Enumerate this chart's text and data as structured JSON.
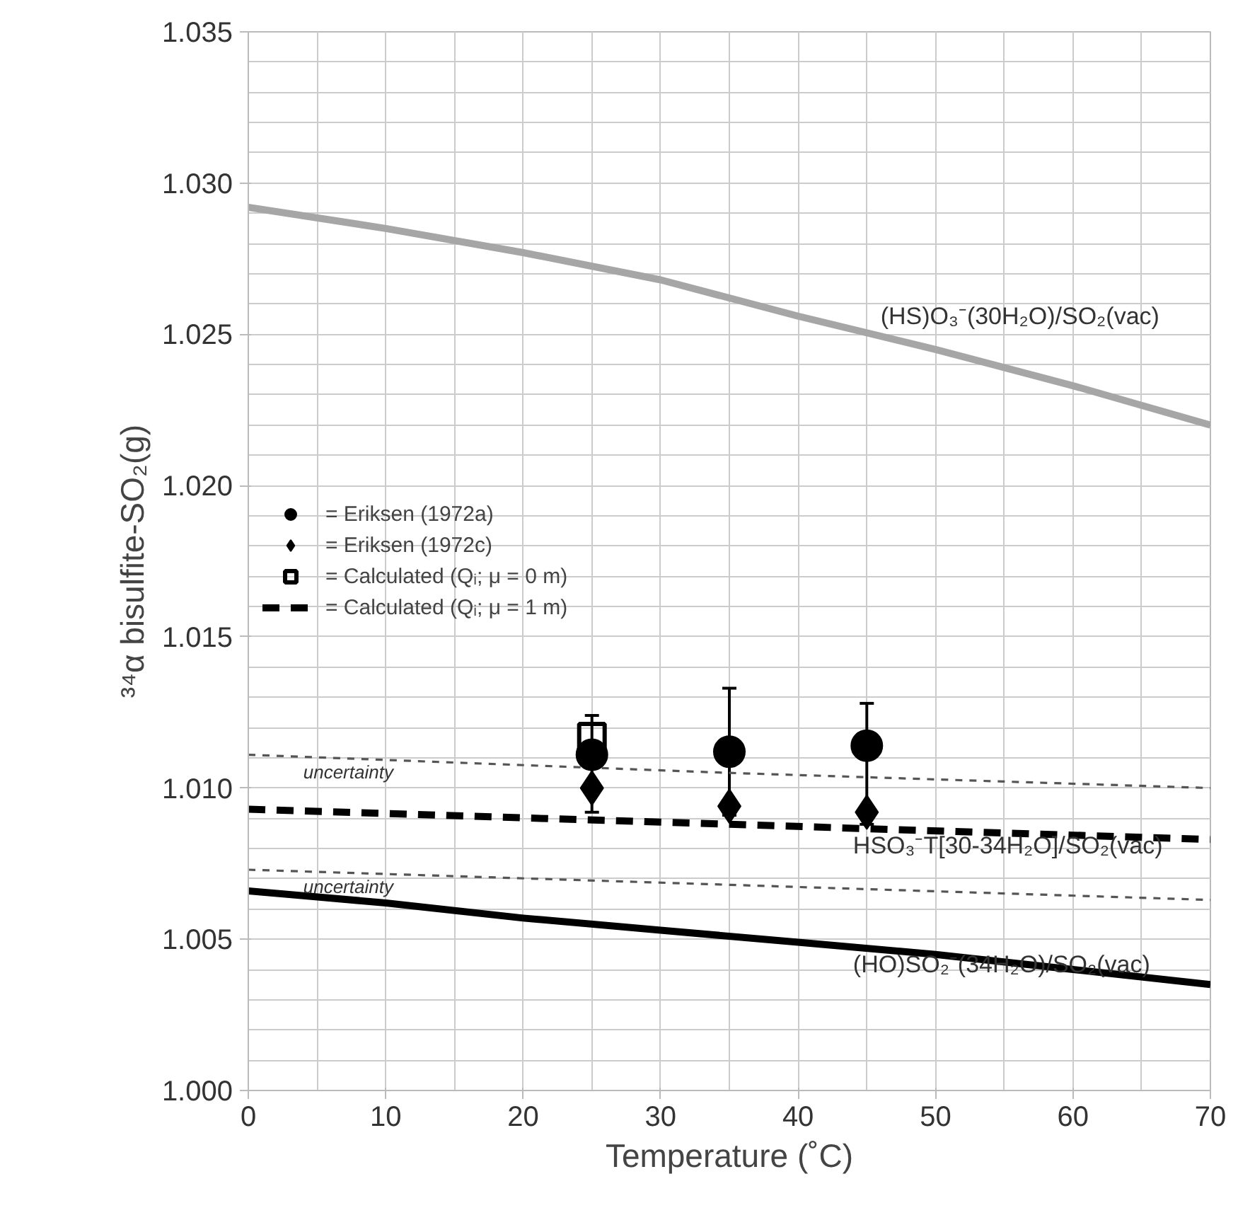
{
  "chart_data": {
    "type": "line",
    "xlabel": "Temperature (˚C)",
    "ylabel": "³⁴α bisulfite-SO₂(g)",
    "xlim": [
      0,
      70
    ],
    "xticks": [
      0,
      10,
      20,
      30,
      40,
      50,
      60,
      70
    ],
    "ylim": [
      1.0,
      1.035
    ],
    "yticks": [
      {
        "value": 1.0,
        "label": "1.000"
      },
      {
        "value": 1.005,
        "label": "1.005"
      },
      {
        "value": 1.01,
        "label": "1.010"
      },
      {
        "value": 1.015,
        "label": "1.015"
      },
      {
        "value": 1.02,
        "label": "1.020"
      },
      {
        "value": 1.025,
        "label": "1.025"
      },
      {
        "value": 1.03,
        "label": "1.030"
      },
      {
        "value": 1.035,
        "label": "1.035"
      }
    ],
    "grid": true,
    "legend": "left",
    "series": [
      {
        "color": "#a6a6a6",
        "line_style": "solid",
        "x": [
          0,
          10,
          20,
          30,
          40,
          50,
          60,
          70
        ],
        "values": [
          1.0292,
          1.0285,
          1.0277,
          1.0268,
          1.0256,
          1.0245,
          1.0233,
          1.022
        ]
      },
      {
        "color": "#000000",
        "line_style": "solid",
        "x": [
          0,
          10,
          20,
          30,
          40,
          50,
          60,
          70
        ],
        "values": [
          1.0066,
          1.0062,
          1.0057,
          1.0053,
          1.0049,
          1.0045,
          1.004,
          1.0035
        ]
      },
      {
        "color": "#555555",
        "line_style": "dotted",
        "x": [
          0,
          35,
          70
        ],
        "values": [
          1.0111,
          1.0105,
          1.01
        ]
      },
      {
        "color": "#555555",
        "line_style": "dotted",
        "x": [
          0,
          35,
          70
        ],
        "values": [
          1.0073,
          1.0068,
          1.0063
        ]
      },
      {
        "name": "= Calculated (Qᵢ; μ = 1 m)",
        "color": "#000000",
        "line_style": "dashed",
        "x": [
          0,
          35,
          70
        ],
        "values": [
          1.0093,
          1.0088,
          1.0083
        ]
      },
      {
        "type": "scatter",
        "name": "= Calculated (Qᵢ; μ = 0 m)",
        "color": "#000000",
        "marker": "square",
        "x": [
          25
        ],
        "values": [
          1.0117
        ]
      },
      {
        "type": "scatter",
        "name": "= Eriksen (1972a)",
        "color": "#000000",
        "marker": "circle",
        "x": [
          25,
          35,
          45
        ],
        "values": [
          1.0111,
          1.0112,
          1.0114
        ],
        "errors": [
          [
            1.0092,
            1.0124
          ],
          [
            1.0091,
            1.0133
          ],
          [
            1.0088,
            1.0128
          ]
        ]
      },
      {
        "type": "scatter",
        "name": "= Eriksen (1972c)",
        "color": "#000000",
        "marker": "diamond",
        "x": [
          25,
          35,
          45
        ],
        "values": [
          1.01,
          1.0094,
          1.0092
        ]
      }
    ],
    "annotations": [
      {
        "text": "(HS)O₃⁻(30H₂O)/SO₂(vac)",
        "x": 46,
        "y": 1.025
      },
      {
        "text": "HSO₃⁻T[30-34H₂O]/SO₂(vac)",
        "x": 44,
        "y": 1.00867
      },
      {
        "text": "(HO)SO₂⁻(34H₂O)/SO₂(vac)",
        "x": 44,
        "y": 1.00474
      },
      {
        "text": "uncertainty",
        "x": 4,
        "y": 1.01103
      },
      {
        "text": "uncertainty",
        "x": 4,
        "y": 1.00724
      }
    ]
  }
}
